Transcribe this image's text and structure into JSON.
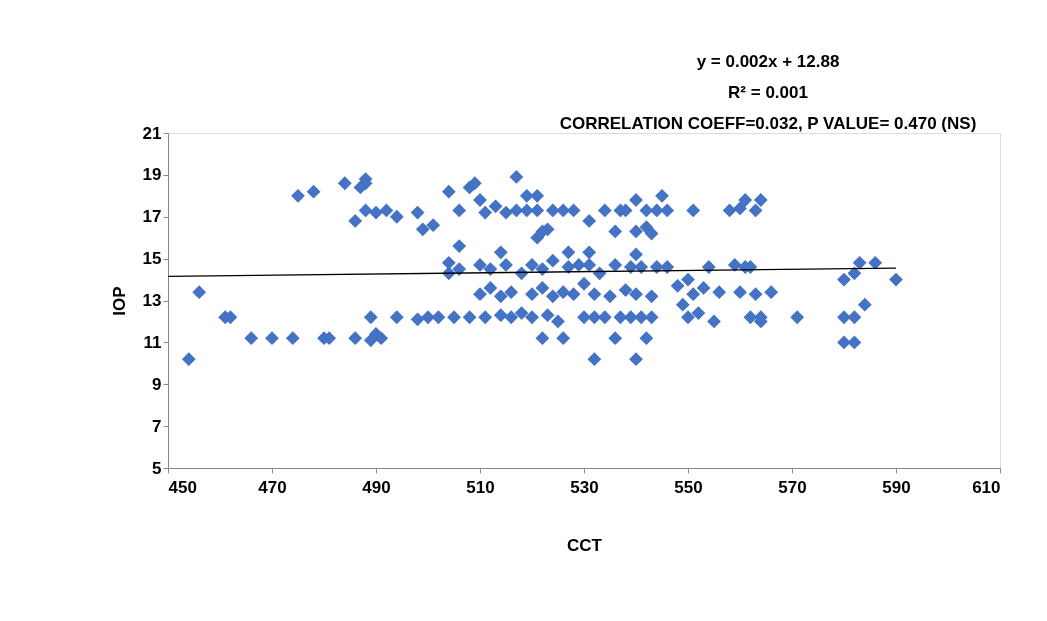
{
  "chart_data": {
    "type": "scatter",
    "xlabel": "CCT",
    "ylabel": "IOP",
    "annotations": [
      "y = 0.002x + 12.88",
      "R² = 0.001",
      "CORRELATION COEFF=0.032, P VALUE= 0.470 (NS)"
    ],
    "xlim": [
      450,
      610
    ],
    "xticks": [
      450,
      470,
      490,
      510,
      530,
      550,
      570,
      590,
      610
    ],
    "ylim": [
      5,
      21
    ],
    "yticks": [
      5,
      7,
      9,
      11,
      13,
      15,
      17,
      19,
      21
    ],
    "grid": false,
    "marker": "diamond",
    "series": [
      {
        "color": "#4472c4",
        "x": [
          454,
          456,
          461,
          462,
          466,
          470,
          474,
          475,
          478,
          480,
          481,
          484,
          486,
          486,
          487,
          488,
          488,
          488,
          489,
          489,
          490,
          490,
          491,
          492,
          494,
          494,
          498,
          498,
          499,
          500,
          501,
          502,
          504,
          504,
          504,
          505,
          506,
          506,
          506,
          508,
          508,
          509,
          510,
          510,
          510,
          511,
          511,
          512,
          512,
          513,
          514,
          514,
          514,
          515,
          515,
          516,
          516,
          517,
          517,
          518,
          518,
          519,
          519,
          520,
          520,
          520,
          521,
          521,
          521,
          522,
          522,
          522,
          522,
          523,
          523,
          524,
          524,
          524,
          525,
          526,
          526,
          526,
          527,
          527,
          528,
          528,
          529,
          530,
          530,
          531,
          531,
          531,
          532,
          532,
          532,
          533,
          534,
          534,
          535,
          536,
          536,
          536,
          537,
          537,
          538,
          538,
          539,
          539,
          540,
          540,
          540,
          540,
          540,
          541,
          541,
          542,
          542,
          542,
          543,
          543,
          543,
          544,
          544,
          545,
          546,
          546,
          548,
          549,
          550,
          550,
          551,
          551,
          552,
          553,
          554,
          555,
          556,
          558,
          559,
          560,
          560,
          561,
          561,
          562,
          562,
          563,
          563,
          564,
          564,
          564,
          566,
          571,
          580,
          580,
          580,
          582,
          582,
          582,
          583,
          584,
          586,
          590
        ],
        "values": [
          10.2,
          13.4,
          12.2,
          12.2,
          11.2,
          11.2,
          11.2,
          18,
          18.2,
          11.2,
          11.2,
          18.6,
          11.2,
          16.8,
          18.4,
          18.6,
          17.3,
          18.8,
          11.1,
          12.2,
          11.4,
          17.2,
          11.2,
          17.3,
          12.2,
          17,
          17.2,
          12.1,
          16.4,
          12.2,
          16.6,
          12.2,
          18.2,
          14.8,
          14.3,
          12.2,
          15.6,
          17.3,
          14.5,
          18.4,
          12.2,
          18.6,
          13.3,
          17.8,
          14.7,
          12.2,
          17.2,
          14.5,
          13.6,
          17.5,
          15.3,
          13.2,
          12.3,
          14.7,
          17.2,
          12.2,
          13.4,
          17.3,
          18.9,
          14.3,
          12.4,
          18,
          17.3,
          14.7,
          13.3,
          12.2,
          18,
          16,
          17.3,
          16.3,
          11.2,
          13.6,
          14.5,
          16.4,
          12.3,
          17.3,
          14.9,
          13.2,
          12,
          17.3,
          11.2,
          13.4,
          15.3,
          14.6,
          17.3,
          13.3,
          14.7,
          12.2,
          13.8,
          16.8,
          15.3,
          14.7,
          10.2,
          12.2,
          13.3,
          14.3,
          12.2,
          17.3,
          13.2,
          16.3,
          11.2,
          14.7,
          17.3,
          12.2,
          13.5,
          17.3,
          14.6,
          12.2,
          10.2,
          17.8,
          16.3,
          15.2,
          13.3,
          12.2,
          14.6,
          11.2,
          16.5,
          17.3,
          16.2,
          13.2,
          12.2,
          14.6,
          17.3,
          18,
          14.6,
          17.3,
          13.7,
          12.8,
          14,
          12.2,
          17.3,
          13.3,
          12.4,
          13.6,
          14.6,
          12,
          13.4,
          17.3,
          14.7,
          13.4,
          17.4,
          14.6,
          17.8,
          12.2,
          14.6,
          13.3,
          17.3,
          12,
          17.8,
          12.2,
          13.4,
          12.2,
          14,
          12.2,
          11,
          14.3,
          12.2,
          11,
          14.8,
          12.8,
          14.8,
          14
        ]
      },
      {
        "type": "line",
        "marker": "none",
        "color": "#000000",
        "x": [
          450,
          590
        ],
        "values": [
          14.15,
          14.55
        ]
      }
    ]
  }
}
